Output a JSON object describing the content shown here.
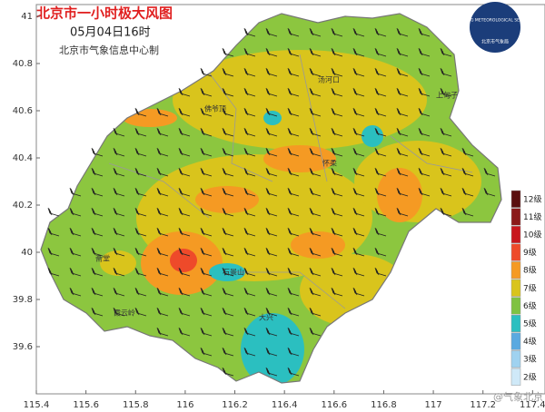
{
  "header": {
    "title": "北京市一小时极大风图",
    "time": "05月04日16时",
    "source": "北京市气象信息中心制",
    "logo": "BEIJING METEOROLOGICAL SERVICE",
    "logo_cn": "北京市气象局"
  },
  "axes": {
    "xlim": [
      115.4,
      117.45
    ],
    "ylim": [
      39.4,
      41.05
    ],
    "xticks": [
      115.4,
      115.6,
      115.8,
      116,
      116.2,
      116.4,
      116.6,
      116.8,
      117,
      117.2,
      117.4
    ],
    "yticks": [
      39.6,
      39.8,
      40,
      40.2,
      40.4,
      40.6,
      40.8,
      41
    ]
  },
  "legend": {
    "levels": [
      {
        "label": "12级",
        "color": "#5a0f0f"
      },
      {
        "label": "11级",
        "color": "#8b1a1a"
      },
      {
        "label": "10级",
        "color": "#c8161d"
      },
      {
        "label": "9级",
        "color": "#ee4a2a"
      },
      {
        "label": "8级",
        "color": "#f59a23"
      },
      {
        "label": "7级",
        "color": "#d9c41c"
      },
      {
        "label": "6级",
        "color": "#7fc242"
      },
      {
        "label": "5级",
        "color": "#2bbfc0"
      },
      {
        "label": "4级",
        "color": "#5aa9e0"
      },
      {
        "label": "3级",
        "color": "#9fd2f0"
      },
      {
        "label": "2级",
        "color": "#cfe9f8"
      }
    ]
  },
  "places": [
    "汤河口",
    "上甸子",
    "怀柔",
    "斋堂",
    "霞云岭",
    "大兴",
    "佛爷顶",
    "石景山"
  ],
  "watermark": "@气象北京"
}
